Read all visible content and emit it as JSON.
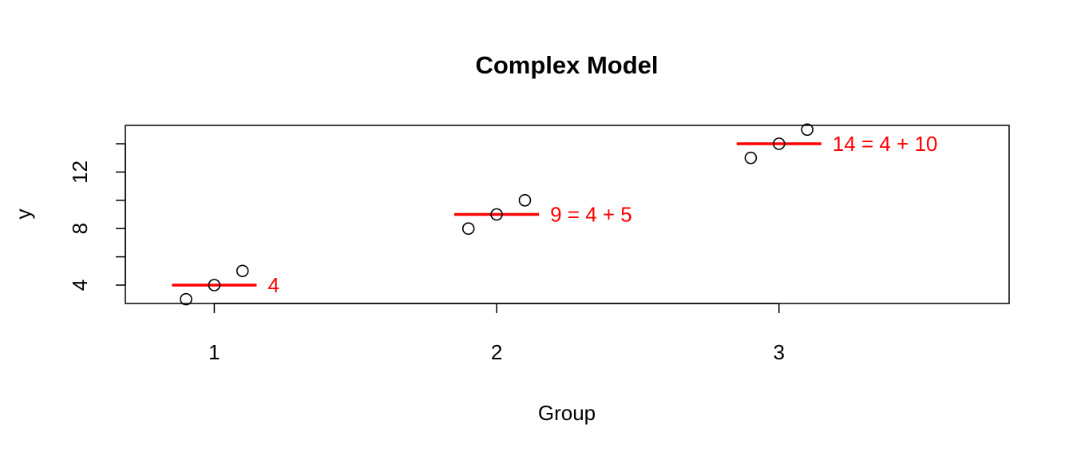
{
  "chart_data": {
    "type": "scatter",
    "title": "Complex Model",
    "xlabel": "Group",
    "ylabel": "y",
    "xlim": [
      0.685,
      3.815
    ],
    "ylim": [
      2.7,
      15.3
    ],
    "x_ticks": [
      1,
      2,
      3
    ],
    "x_tick_labels": [
      "1",
      "2",
      "3"
    ],
    "y_ticks": [
      4,
      6,
      8,
      10,
      12,
      14
    ],
    "y_tick_labels": [
      "4",
      "",
      "8",
      "",
      "12",
      ""
    ],
    "grid": false,
    "legend": "none",
    "point_color": "#000000",
    "fit_color": "#ff0000",
    "series": [
      {
        "x": [
          0.9,
          1.0,
          1.1,
          1.9,
          2.0,
          2.1,
          2.9,
          3.0,
          3.1
        ],
        "y": [
          3,
          4,
          5,
          8,
          9,
          10,
          13,
          14,
          15
        ]
      }
    ],
    "group_fits": [
      {
        "group": 1,
        "x_from": 0.85,
        "x_to": 1.15,
        "value": 4,
        "label": "4"
      },
      {
        "group": 2,
        "x_from": 1.85,
        "x_to": 2.15,
        "value": 9,
        "label": "9 = 4 + 5"
      },
      {
        "group": 3,
        "x_from": 2.85,
        "x_to": 3.15,
        "value": 14,
        "label": "14 = 4 + 10"
      }
    ]
  }
}
